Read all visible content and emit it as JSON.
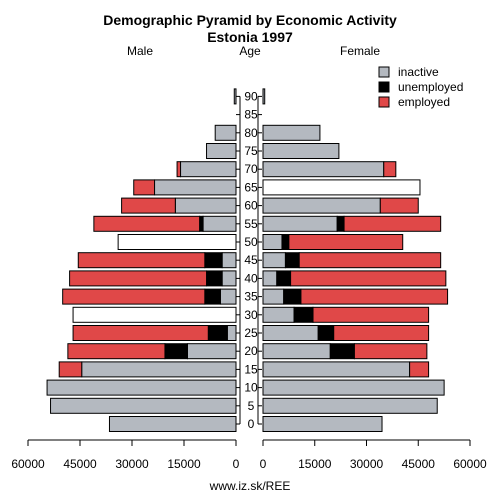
{
  "chart_data": {
    "type": "bar",
    "title": "Demographic Pyramid by Economic Activity",
    "subtitle": "Estonia 1997",
    "left_label": "Male",
    "center_label": "Age",
    "right_label": "Female",
    "source": "www.iz.sk/REE",
    "age_groups": [
      "0",
      "5",
      "10",
      "15",
      "20",
      "25",
      "30",
      "35",
      "40",
      "45",
      "50",
      "55",
      "60",
      "65",
      "70",
      "75",
      "80",
      "85",
      "90"
    ],
    "x_ticks": [
      "60000",
      "45000",
      "30000",
      "15000",
      "0"
    ],
    "x_ticks_right": [
      "0",
      "15000",
      "30000",
      "45000",
      "60000"
    ],
    "xlim": [
      0,
      60000
    ],
    "legend": [
      {
        "name": "inactive",
        "color": "#b4b9c0"
      },
      {
        "name": "unemployed",
        "color": "#000000"
      },
      {
        "name": "employed",
        "color": "#e04848"
      }
    ],
    "male": {
      "inactive": [
        36500,
        53500,
        54500,
        44500,
        14000,
        2500,
        0,
        4500,
        4000,
        4000,
        0,
        9500,
        17500,
        23500,
        16000,
        8500,
        6000,
        0,
        500
      ],
      "unemployed": [
        0,
        0,
        0,
        0,
        6500,
        5500,
        0,
        4500,
        4500,
        5000,
        0,
        1000,
        0,
        0,
        0,
        0,
        0,
        0,
        0
      ],
      "employed": [
        0,
        0,
        0,
        6500,
        28000,
        39000,
        0,
        41000,
        39500,
        36500,
        0,
        30500,
        15500,
        6000,
        1000,
        0,
        0,
        0,
        0
      ],
      "total_only": [
        null,
        null,
        null,
        null,
        null,
        null,
        47000,
        null,
        null,
        null,
        34000,
        null,
        null,
        null,
        null,
        null,
        null,
        null,
        null
      ]
    },
    "female": {
      "inactive": [
        34500,
        50500,
        52500,
        42500,
        19500,
        16000,
        9000,
        6000,
        4000,
        6500,
        5500,
        21500,
        34000,
        0,
        35000,
        22000,
        16500,
        0,
        500
      ],
      "unemployed": [
        0,
        0,
        0,
        0,
        7000,
        4500,
        5500,
        5000,
        4000,
        4000,
        2000,
        2000,
        0,
        0,
        0,
        0,
        0,
        0,
        0
      ],
      "employed": [
        0,
        0,
        0,
        5500,
        21000,
        27500,
        33500,
        42500,
        45000,
        41000,
        33000,
        28000,
        11000,
        0,
        3500,
        0,
        0,
        0,
        0
      ],
      "total_only": [
        null,
        null,
        null,
        null,
        null,
        null,
        null,
        null,
        null,
        null,
        null,
        null,
        null,
        45500,
        null,
        null,
        null,
        null,
        null
      ]
    }
  }
}
